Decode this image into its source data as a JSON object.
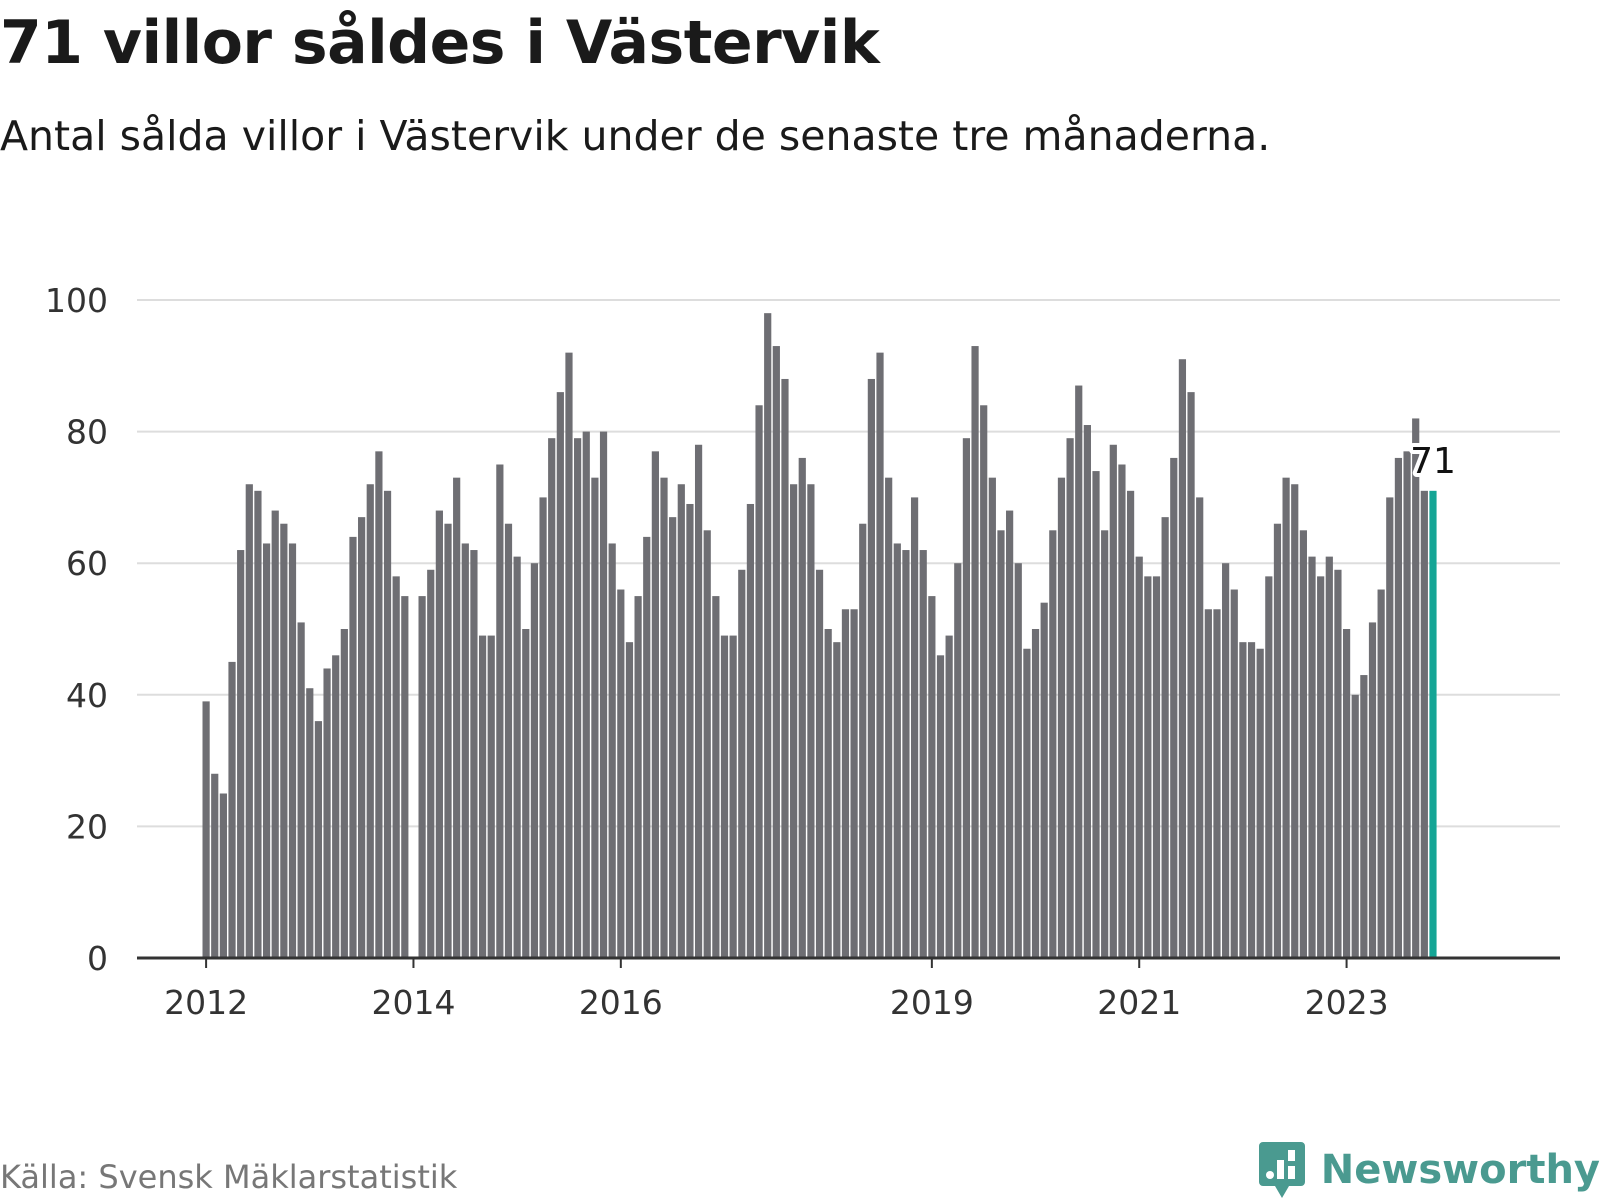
{
  "title": "71 villor såldes i Västervik",
  "subtitle": "Antal sålda villor i Västervik under de senaste tre månaderna.",
  "source": "Källa: Svensk Mäklarstatistik",
  "brand": {
    "name": "Newsworthy",
    "icon": "newsworthy-logo-icon",
    "color": "#4a9a90"
  },
  "colors": {
    "bar": "#6e6e73",
    "highlight": "#14a595",
    "grid": "#dddddd",
    "axis": "#333333"
  },
  "chart_data": {
    "type": "bar",
    "title": "71 villor såldes i Västervik",
    "xlabel": "",
    "ylabel": "",
    "ylim": [
      0,
      100
    ],
    "yticks": [
      0,
      20,
      40,
      60,
      80,
      100
    ],
    "grid": true,
    "x_ticks": [
      {
        "label": "2012",
        "index": 0
      },
      {
        "label": "2014",
        "index": 24
      },
      {
        "label": "2016",
        "index": 48
      },
      {
        "label": "2019",
        "index": 84
      },
      {
        "label": "2021",
        "index": 108
      },
      {
        "label": "2023",
        "index": 132
      }
    ],
    "values": [
      39,
      28,
      25,
      45,
      62,
      72,
      71,
      63,
      68,
      66,
      63,
      51,
      41,
      36,
      44,
      46,
      50,
      64,
      67,
      72,
      77,
      71,
      58,
      55,
      null,
      55,
      59,
      68,
      66,
      73,
      63,
      62,
      49,
      49,
      75,
      66,
      61,
      50,
      60,
      70,
      79,
      86,
      92,
      79,
      80,
      73,
      80,
      63,
      56,
      48,
      55,
      64,
      77,
      73,
      67,
      72,
      69,
      78,
      65,
      55,
      49,
      49,
      59,
      69,
      84,
      98,
      93,
      88,
      72,
      76,
      72,
      59,
      50,
      48,
      53,
      53,
      66,
      88,
      92,
      73,
      63,
      62,
      70,
      62,
      55,
      46,
      49,
      60,
      79,
      93,
      84,
      73,
      65,
      68,
      60,
      47,
      50,
      54,
      65,
      73,
      79,
      87,
      81,
      74,
      65,
      78,
      75,
      71,
      61,
      58,
      58,
      67,
      76,
      91,
      86,
      70,
      53,
      53,
      60,
      56,
      48,
      48,
      47,
      58,
      66,
      73,
      72,
      65,
      61,
      58,
      61,
      59,
      50,
      40,
      43,
      51,
      56,
      70,
      76,
      77,
      82,
      71,
      71
    ],
    "highlight_index": 142,
    "highlight_label": "71"
  }
}
